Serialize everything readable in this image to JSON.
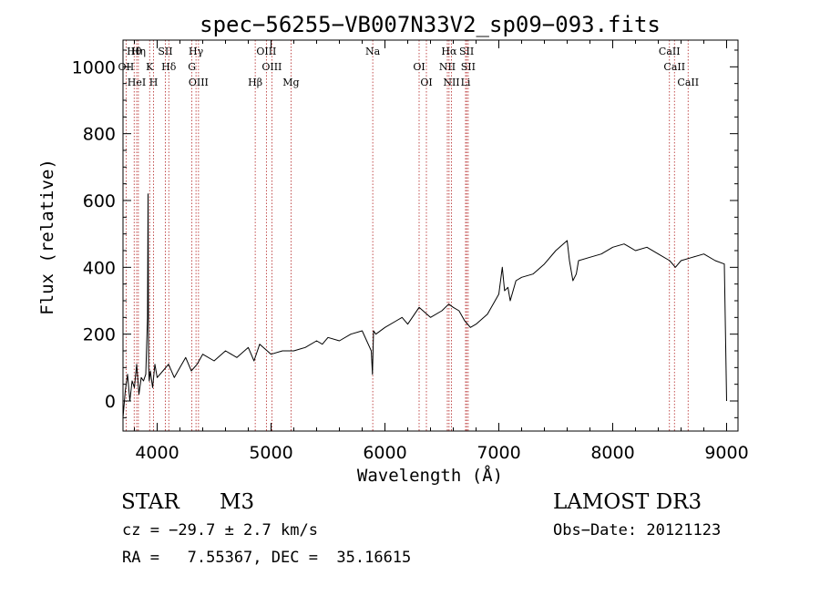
{
  "chart_data": {
    "type": "line",
    "title": "spec−56255−VB007N33V2_sp09−093.fits",
    "xlabel": "Wavelength (Å)",
    "ylabel": "Flux (relative)",
    "xlim": [
      3700,
      9100
    ],
    "ylim": [
      -90,
      1080
    ],
    "x_ticks": [
      4000,
      5000,
      6000,
      7000,
      8000,
      9000
    ],
    "y_ticks": [
      0,
      200,
      400,
      600,
      800,
      1000
    ],
    "series": [
      {
        "name": "spectrum",
        "x": [
          3700,
          3720,
          3740,
          3760,
          3780,
          3800,
          3820,
          3840,
          3860,
          3880,
          3900,
          3915,
          3920,
          3925,
          3930,
          3940,
          3960,
          3980,
          4000,
          4050,
          4100,
          4150,
          4200,
          4250,
          4300,
          4350,
          4400,
          4500,
          4600,
          4700,
          4800,
          4850,
          4900,
          5000,
          5100,
          5200,
          5300,
          5400,
          5450,
          5500,
          5600,
          5700,
          5800,
          5880,
          5890,
          5900,
          5920,
          6000,
          6100,
          6150,
          6200,
          6300,
          6400,
          6500,
          6560,
          6600,
          6650,
          6700,
          6750,
          6800,
          6900,
          7000,
          7030,
          7050,
          7080,
          7100,
          7150,
          7200,
          7300,
          7400,
          7500,
          7600,
          7620,
          7650,
          7680,
          7700,
          7800,
          7900,
          8000,
          8100,
          8150,
          8200,
          8300,
          8400,
          8500,
          8550,
          8600,
          8700,
          8800,
          8900,
          8980,
          9000
        ],
        "y": [
          -50,
          30,
          80,
          0,
          60,
          40,
          110,
          20,
          70,
          60,
          80,
          250,
          620,
          100,
          60,
          90,
          40,
          110,
          70,
          90,
          110,
          70,
          100,
          130,
          90,
          110,
          140,
          120,
          150,
          130,
          160,
          120,
          170,
          140,
          150,
          150,
          160,
          180,
          170,
          190,
          180,
          200,
          210,
          150,
          80,
          210,
          200,
          220,
          240,
          250,
          230,
          280,
          250,
          270,
          290,
          280,
          270,
          240,
          220,
          230,
          260,
          320,
          400,
          330,
          340,
          300,
          360,
          370,
          380,
          410,
          450,
          480,
          420,
          360,
          380,
          420,
          430,
          440,
          460,
          470,
          460,
          450,
          460,
          440,
          420,
          400,
          420,
          430,
          440,
          420,
          410,
          0
        ]
      }
    ],
    "line_ids": [
      {
        "label": "Hθ",
        "wavelength": 3798
      },
      {
        "label": "OII",
        "wavelength": 3727
      },
      {
        "label": "HeI",
        "wavelength": 3820
      },
      {
        "label": "Hη",
        "wavelength": 3835
      },
      {
        "label": "K",
        "wavelength": 3934
      },
      {
        "label": "H",
        "wavelength": 3968
      },
      {
        "label": "SII",
        "wavelength": 4072
      },
      {
        "label": "Hδ",
        "wavelength": 4102
      },
      {
        "label": "OIII",
        "wavelength": 4363
      },
      {
        "label": "Hγ",
        "wavelength": 4341
      },
      {
        "label": "G",
        "wavelength": 4305
      },
      {
        "label": "Hβ",
        "wavelength": 4861
      },
      {
        "label": "OIII",
        "wavelength": 4959
      },
      {
        "label": "OIII",
        "wavelength": 5007
      },
      {
        "label": "Mg",
        "wavelength": 5175
      },
      {
        "label": "Na",
        "wavelength": 5893
      },
      {
        "label": "OI",
        "wavelength": 6300
      },
      {
        "label": "OI",
        "wavelength": 6364
      },
      {
        "label": "Hα",
        "wavelength": 6563
      },
      {
        "label": "NII",
        "wavelength": 6548
      },
      {
        "label": "NII",
        "wavelength": 6584
      },
      {
        "label": "SII",
        "wavelength": 6717
      },
      {
        "label": "SII",
        "wavelength": 6731
      },
      {
        "label": "Li",
        "wavelength": 6708
      },
      {
        "label": "CaII",
        "wavelength": 8498
      },
      {
        "label": "CaII",
        "wavelength": 8542
      },
      {
        "label": "CaII",
        "wavelength": 8662
      }
    ]
  },
  "footer": {
    "object_class": "STAR",
    "subclass": "M3",
    "survey": "LAMOST DR3",
    "redshift": "cz = −29.7 ± 2.7 km/s",
    "obs_date": "Obs−Date: 20121123",
    "coords": "RA =   7.55367, DEC =  35.16615"
  },
  "colors": {
    "spectrum": "#000000",
    "line_markers": "#b22222"
  }
}
